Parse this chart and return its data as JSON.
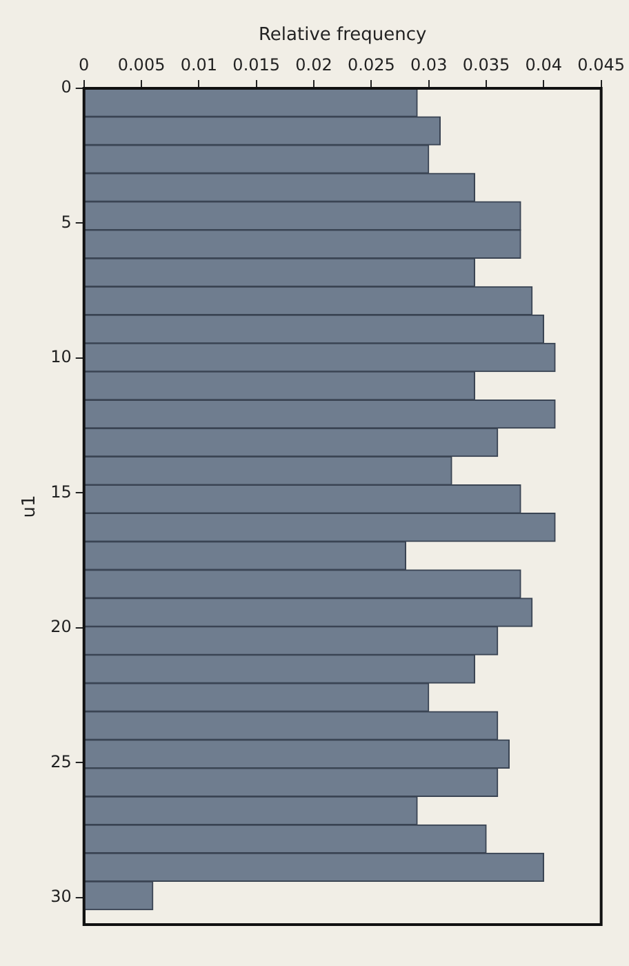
{
  "chart_data": {
    "type": "histogram",
    "orientation": "horizontal",
    "xlabel": "Relative frequency",
    "ylabel": "u1",
    "bins": [
      0,
      1.05,
      2.1,
      3.15,
      4.2,
      5.25,
      6.3,
      7.35,
      8.4,
      9.45,
      10.5,
      11.55,
      12.6,
      13.65,
      14.7,
      15.75,
      16.8,
      17.85,
      18.9,
      19.95,
      21,
      22.05,
      23.1,
      24.15,
      25.2,
      26.25,
      27.3,
      28.35,
      29.4,
      30.45
    ],
    "values": [
      0.029,
      0.031,
      0.03,
      0.034,
      0.038,
      0.038,
      0.034,
      0.039,
      0.04,
      0.041,
      0.034,
      0.041,
      0.036,
      0.032,
      0.038,
      0.041,
      0.028,
      0.038,
      0.039,
      0.036,
      0.034,
      0.03,
      0.036,
      0.037,
      0.036,
      0.029,
      0.035,
      0.04,
      0.006
    ],
    "color": "#6f7d8f",
    "xlim": [
      0,
      0.045
    ],
    "xticks": [
      0,
      0.005,
      0.01,
      0.015,
      0.02,
      0.025,
      0.03,
      0.035,
      0.04,
      0.045
    ],
    "ylim": [
      31,
      0
    ],
    "yticks": [
      0,
      5,
      10,
      15,
      20,
      25,
      30
    ],
    "grid": false,
    "legend": false
  }
}
